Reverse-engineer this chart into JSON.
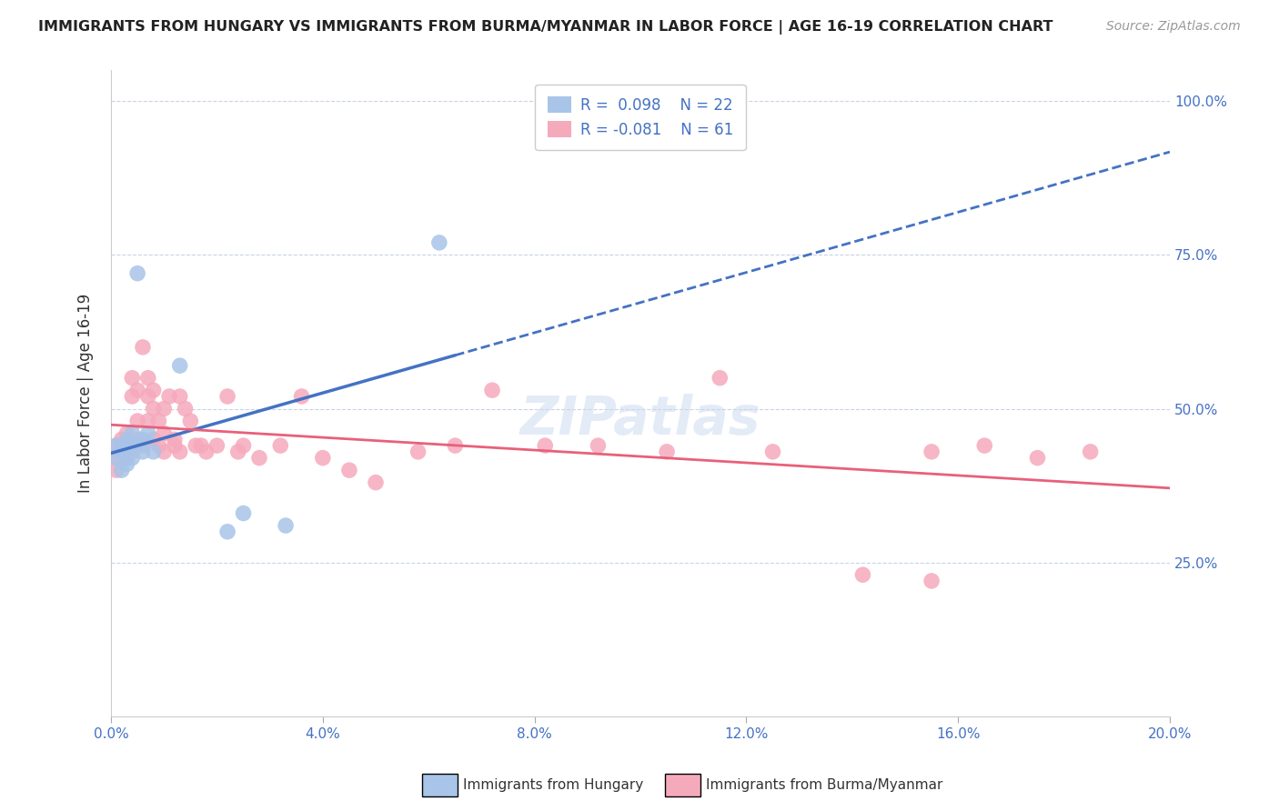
{
  "title": "IMMIGRANTS FROM HUNGARY VS IMMIGRANTS FROM BURMA/MYANMAR IN LABOR FORCE | AGE 16-19 CORRELATION CHART",
  "source": "Source: ZipAtlas.com",
  "ylabel": "In Labor Force | Age 16-19",
  "watermark": "ZIPatlas",
  "hungary_color": "#a8c4e8",
  "burma_color": "#f5aabc",
  "hungary_line_color": "#4472c4",
  "burma_line_color": "#e8607a",
  "xlim": [
    0.0,
    0.2
  ],
  "ylim": [
    0.0,
    1.05
  ],
  "hungary_R": 0.098,
  "hungary_N": 22,
  "burma_R": -0.081,
  "burma_N": 61,
  "hungary_x": [
    0.001,
    0.001,
    0.002,
    0.002,
    0.002,
    0.003,
    0.003,
    0.003,
    0.004,
    0.004,
    0.004,
    0.005,
    0.005,
    0.006,
    0.006,
    0.007,
    0.008,
    0.013,
    0.022,
    0.025,
    0.033,
    0.062
  ],
  "hungary_y": [
    0.42,
    0.44,
    0.4,
    0.43,
    0.44,
    0.41,
    0.43,
    0.45,
    0.42,
    0.44,
    0.46,
    0.72,
    0.44,
    0.45,
    0.43,
    0.46,
    0.43,
    0.57,
    0.3,
    0.33,
    0.31,
    0.77
  ],
  "burma_x": [
    0.001,
    0.001,
    0.001,
    0.002,
    0.002,
    0.003,
    0.003,
    0.003,
    0.004,
    0.004,
    0.004,
    0.005,
    0.005,
    0.005,
    0.006,
    0.006,
    0.007,
    0.007,
    0.007,
    0.008,
    0.008,
    0.008,
    0.009,
    0.009,
    0.01,
    0.01,
    0.01,
    0.011,
    0.012,
    0.012,
    0.013,
    0.013,
    0.014,
    0.015,
    0.016,
    0.017,
    0.018,
    0.02,
    0.022,
    0.024,
    0.025,
    0.028,
    0.032,
    0.036,
    0.04,
    0.045,
    0.05,
    0.058,
    0.065,
    0.072,
    0.082,
    0.092,
    0.105,
    0.115,
    0.125,
    0.142,
    0.155,
    0.165,
    0.175,
    0.155,
    0.185
  ],
  "burma_y": [
    0.44,
    0.42,
    0.4,
    0.43,
    0.45,
    0.42,
    0.44,
    0.46,
    0.43,
    0.55,
    0.52,
    0.48,
    0.45,
    0.53,
    0.6,
    0.44,
    0.55,
    0.52,
    0.48,
    0.53,
    0.5,
    0.45,
    0.48,
    0.44,
    0.46,
    0.43,
    0.5,
    0.52,
    0.45,
    0.44,
    0.52,
    0.43,
    0.5,
    0.48,
    0.44,
    0.44,
    0.43,
    0.44,
    0.52,
    0.43,
    0.44,
    0.42,
    0.44,
    0.52,
    0.42,
    0.4,
    0.38,
    0.43,
    0.44,
    0.53,
    0.44,
    0.44,
    0.43,
    0.55,
    0.43,
    0.23,
    0.43,
    0.44,
    0.42,
    0.22,
    0.43
  ],
  "xticks": [
    0.0,
    0.04,
    0.08,
    0.12,
    0.16,
    0.2
  ],
  "yticks": [
    0.25,
    0.5,
    0.75,
    1.0
  ],
  "ytick_labels": [
    "25.0%",
    "50.0%",
    "75.0%",
    "100.0%"
  ]
}
